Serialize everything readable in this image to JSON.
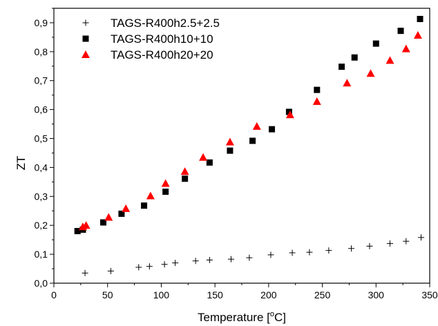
{
  "chart_data": {
    "type": "scatter",
    "xlabel": "Temperature [°C]",
    "xlabel_parts": {
      "main": "Temperature [",
      "sup": "o",
      "end": "C]"
    },
    "ylabel": "ZT",
    "xlim": [
      0,
      350
    ],
    "ylim": [
      0,
      0.95
    ],
    "x_ticks": [
      0,
      50,
      100,
      150,
      200,
      250,
      300,
      350
    ],
    "x_tick_labels": [
      "0",
      "50",
      "100",
      "150",
      "200",
      "250",
      "300",
      "350"
    ],
    "y_ticks": [
      0,
      0.1,
      0.2,
      0.3,
      0.4,
      0.5,
      0.6,
      0.7,
      0.8,
      0.9
    ],
    "y_tick_labels": [
      "0,0",
      "0,1",
      "0,2",
      "0,3",
      "0,4",
      "0,5",
      "0,6",
      "0,7",
      "0,8",
      "0,9"
    ],
    "grid": false,
    "legend_position": "top-left",
    "series": [
      {
        "name": "TAGS-R400h2.5+2.5",
        "marker": "plus",
        "color": "#000000",
        "points": [
          [
            29,
            0.035
          ],
          [
            53,
            0.042
          ],
          [
            79,
            0.055
          ],
          [
            89,
            0.058
          ],
          [
            103,
            0.065
          ],
          [
            113,
            0.07
          ],
          [
            132,
            0.077
          ],
          [
            145,
            0.08
          ],
          [
            165,
            0.083
          ],
          [
            182,
            0.088
          ],
          [
            202,
            0.098
          ],
          [
            222,
            0.105
          ],
          [
            238,
            0.107
          ],
          [
            256,
            0.113
          ],
          [
            277,
            0.12
          ],
          [
            294,
            0.128
          ],
          [
            313,
            0.137
          ],
          [
            328,
            0.145
          ],
          [
            342,
            0.158
          ]
        ]
      },
      {
        "name": "TAGS-R400h10+10",
        "marker": "square",
        "color": "#000000",
        "points": [
          [
            22,
            0.18
          ],
          [
            27,
            0.185
          ],
          [
            46,
            0.21
          ],
          [
            63,
            0.24
          ],
          [
            84,
            0.268
          ],
          [
            104,
            0.316
          ],
          [
            122,
            0.361
          ],
          [
            145,
            0.417
          ],
          [
            164,
            0.458
          ],
          [
            185,
            0.492
          ],
          [
            203,
            0.532
          ],
          [
            219,
            0.592
          ],
          [
            245,
            0.668
          ],
          [
            268,
            0.748
          ],
          [
            280,
            0.78
          ],
          [
            300,
            0.828
          ],
          [
            323,
            0.872
          ],
          [
            341,
            0.913
          ]
        ]
      },
      {
        "name": "TAGS-R400h20+20",
        "marker": "triangle",
        "color": "#ff0000",
        "points": [
          [
            27,
            0.195
          ],
          [
            30,
            0.2
          ],
          [
            51,
            0.228
          ],
          [
            67,
            0.258
          ],
          [
            90,
            0.302
          ],
          [
            104,
            0.345
          ],
          [
            122,
            0.386
          ],
          [
            139,
            0.435
          ],
          [
            164,
            0.488
          ],
          [
            189,
            0.542
          ],
          [
            220,
            0.582
          ],
          [
            245,
            0.628
          ],
          [
            273,
            0.692
          ],
          [
            295,
            0.725
          ],
          [
            313,
            0.77
          ],
          [
            328,
            0.81
          ],
          [
            339,
            0.857
          ]
        ]
      }
    ]
  }
}
